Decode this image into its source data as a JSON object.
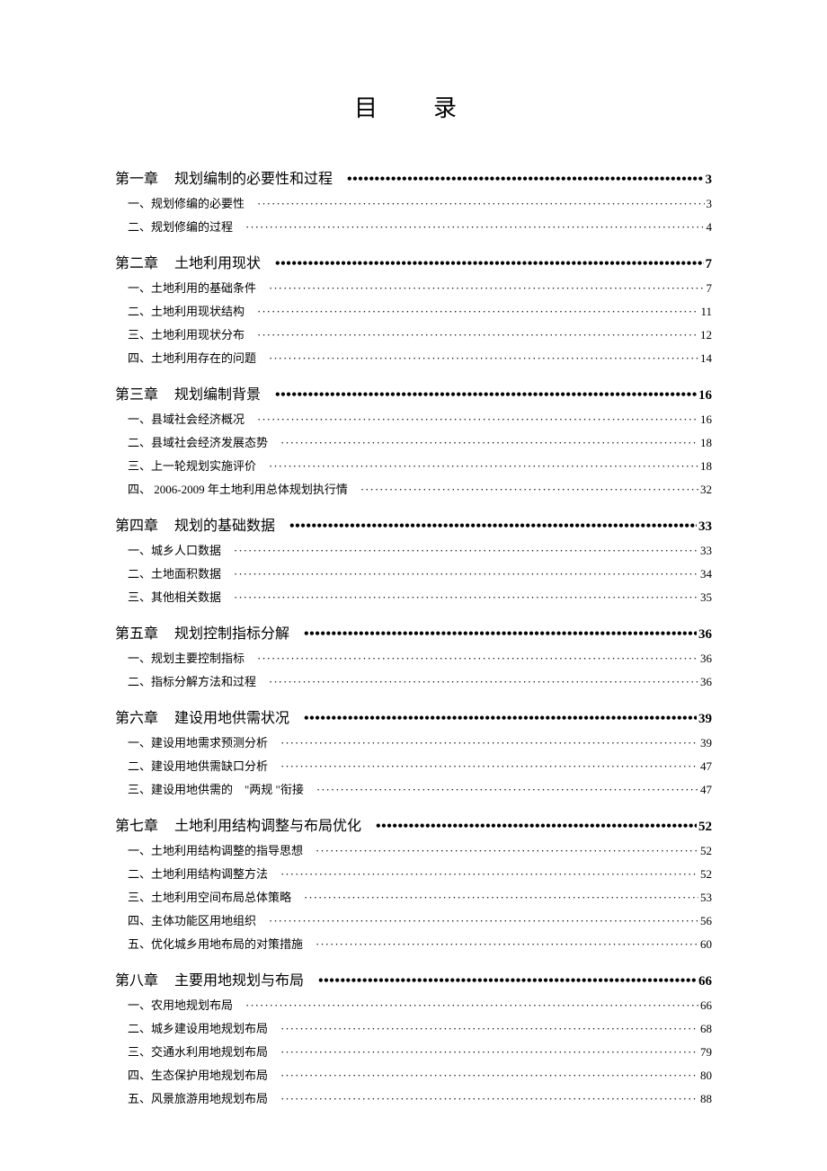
{
  "title": "目　录",
  "chapters": [
    {
      "label": "第一章",
      "name": "规划编制的必要性和过程",
      "page": "3",
      "sections": [
        {
          "label": "一、规划修编的必要性",
          "page": "3"
        },
        {
          "label": "二、规划修编的过程",
          "page": "4"
        }
      ]
    },
    {
      "label": "第二章",
      "name": "土地利用现状",
      "page": "7",
      "sections": [
        {
          "label": "一、土地利用的基础条件",
          "page": "7"
        },
        {
          "label": "二、土地利用现状结构",
          "page": "11"
        },
        {
          "label": "三、土地利用现状分布",
          "page": "12"
        },
        {
          "label": "四、土地利用存在的问题",
          "page": "14"
        }
      ]
    },
    {
      "label": "第三章",
      "name": "规划编制背景",
      "page": "16",
      "sections": [
        {
          "label": "一、县域社会经济概况",
          "page": "16"
        },
        {
          "label": "二、县域社会经济发展态势",
          "page": "18"
        },
        {
          "label": "三、上一轮规划实施评价",
          "page": "18"
        },
        {
          "label": "四、 2006-2009 年土地利用总体规划执行情",
          "page": "32"
        }
      ]
    },
    {
      "label": "第四章",
      "name": "规划的基础数据",
      "page": "33",
      "sections": [
        {
          "label": "一、城乡人口数据",
          "page": "33"
        },
        {
          "label": "二、土地面积数据",
          "page": "34"
        },
        {
          "label": "三、其他相关数据",
          "page": "35"
        }
      ]
    },
    {
      "label": "第五章",
      "name": "规划控制指标分解",
      "page": "36",
      "sections": [
        {
          "label": "一、规划主要控制指标",
          "page": "36"
        },
        {
          "label": "二、指标分解方法和过程",
          "page": "36"
        }
      ]
    },
    {
      "label": "第六章",
      "name": "建设用地供需状况",
      "page": "39",
      "sections": [
        {
          "label": "一、建设用地需求预测分析",
          "page": "39"
        },
        {
          "label": "二、建设用地供需缺口分析",
          "page": "47"
        },
        {
          "label": "三、建设用地供需的　\"两规 \"衔接",
          "page": "47"
        }
      ]
    },
    {
      "label": "第七章",
      "name": "土地利用结构调整与布局优化",
      "page": "52",
      "sections": [
        {
          "label": "一、土地利用结构调整的指导思想",
          "page": "52"
        },
        {
          "label": "二、土地利用结构调整方法",
          "page": "52"
        },
        {
          "label": "三、土地利用空间布局总体策略",
          "page": "53"
        },
        {
          "label": "四、主体功能区用地组织",
          "page": "56"
        },
        {
          "label": "五、优化城乡用地布局的对策措施",
          "page": "60"
        }
      ]
    },
    {
      "label": "第八章",
      "name": "主要用地规划与布局",
      "page": "66",
      "sections": [
        {
          "label": "一、农用地规划布局",
          "page": "66"
        },
        {
          "label": "二、城乡建设用地规划布局",
          "page": "68"
        },
        {
          "label": "三、交通水利用地规划布局",
          "page": "79"
        },
        {
          "label": "四、生态保护用地规划布局",
          "page": "80"
        },
        {
          "label": "五、风景旅游用地规划布局",
          "page": "88"
        }
      ]
    }
  ]
}
